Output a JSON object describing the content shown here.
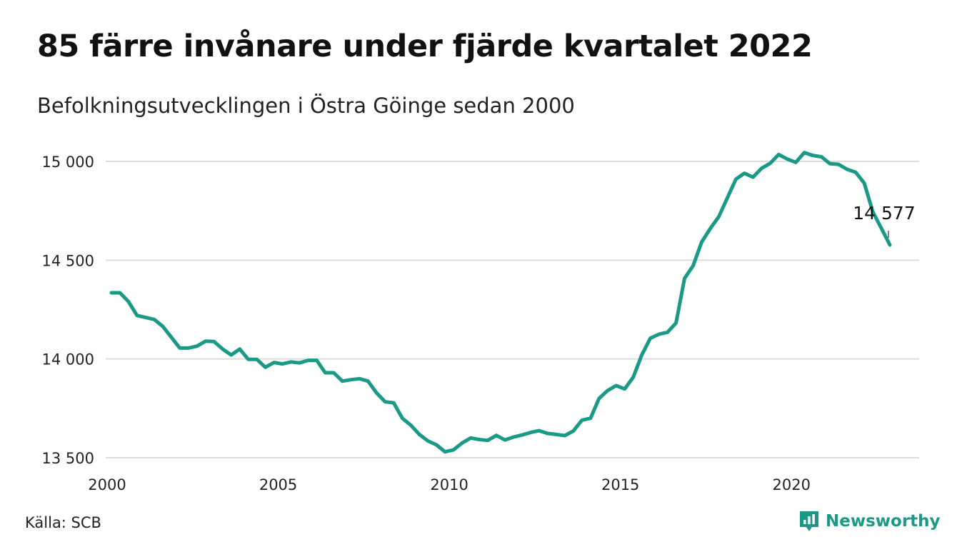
{
  "header": {
    "title": "85 färre invånare under fjärde kvartalet 2022",
    "subtitle": "Befolkningsutvecklingen i Östra Göinge sedan 2000"
  },
  "footer": {
    "source": "Källa: SCB",
    "brand": "Newsworthy"
  },
  "colors": {
    "line": "#1a9a86",
    "grid": "#dcdcdc"
  },
  "chart_data": {
    "type": "line",
    "title": "85 färre invånare under fjärde kvartalet 2022",
    "subtitle": "Befolkningsutvecklingen i Östra Göinge sedan 2000",
    "xlabel": "",
    "ylabel": "",
    "xlim": [
      2000,
      2023.4
    ],
    "ylim": [
      13500,
      15050
    ],
    "x_ticks": [
      2000,
      2005,
      2010,
      2015,
      2020
    ],
    "x_tick_labels": [
      "2000",
      "2005",
      "2010",
      "2015",
      "2020"
    ],
    "y_ticks": [
      13500,
      14000,
      14500,
      15000
    ],
    "y_tick_labels": [
      "13 500",
      "14 000",
      "14 500",
      "15 000"
    ],
    "grid": true,
    "end_label": "14 577",
    "series": [
      {
        "frequency": "quarterly",
        "start": "2000 Q1",
        "x": [
          2000.125,
          2000.375,
          2000.625,
          2000.875,
          2001.125,
          2001.375,
          2001.625,
          2001.875,
          2002.125,
          2002.375,
          2002.625,
          2002.875,
          2003.125,
          2003.375,
          2003.625,
          2003.875,
          2004.125,
          2004.375,
          2004.625,
          2004.875,
          2005.125,
          2005.375,
          2005.625,
          2005.875,
          2006.125,
          2006.375,
          2006.625,
          2006.875,
          2007.125,
          2007.375,
          2007.625,
          2007.875,
          2008.125,
          2008.375,
          2008.625,
          2008.875,
          2009.125,
          2009.375,
          2009.625,
          2009.875,
          2010.125,
          2010.375,
          2010.625,
          2010.875,
          2011.125,
          2011.375,
          2011.625,
          2011.875,
          2012.125,
          2012.375,
          2012.625,
          2012.875,
          2013.125,
          2013.375,
          2013.625,
          2013.875,
          2014.125,
          2014.375,
          2014.625,
          2014.875,
          2015.125,
          2015.375,
          2015.625,
          2015.875,
          2016.125,
          2016.375,
          2016.625,
          2016.875,
          2017.125,
          2017.375,
          2017.625,
          2017.875,
          2018.125,
          2018.375,
          2018.625,
          2018.875,
          2019.125,
          2019.375,
          2019.625,
          2019.875,
          2020.125,
          2020.375,
          2020.625,
          2020.875,
          2021.125,
          2021.375,
          2021.625,
          2021.875,
          2022.125,
          2022.375,
          2022.625,
          2022.875
        ],
        "values": [
          14335,
          14335,
          14290,
          14220,
          14210,
          14200,
          14165,
          14110,
          14055,
          14055,
          14065,
          14090,
          14088,
          14050,
          14020,
          14050,
          13998,
          13998,
          13958,
          13982,
          13975,
          13985,
          13980,
          13993,
          13993,
          13930,
          13930,
          13888,
          13895,
          13900,
          13888,
          13828,
          13783,
          13778,
          13700,
          13665,
          13618,
          13585,
          13565,
          13530,
          13540,
          13575,
          13600,
          13592,
          13588,
          13613,
          13590,
          13605,
          13615,
          13628,
          13637,
          13623,
          13618,
          13612,
          13635,
          13690,
          13700,
          13800,
          13840,
          13865,
          13848,
          13908,
          14020,
          14105,
          14125,
          14135,
          14182,
          14408,
          14472,
          14592,
          14660,
          14720,
          14815,
          14910,
          14940,
          14920,
          14965,
          14990,
          15035,
          15012,
          14995,
          15045,
          15030,
          15023,
          14988,
          14985,
          14960,
          14945,
          14890,
          14745,
          14662,
          14577
        ]
      }
    ]
  }
}
